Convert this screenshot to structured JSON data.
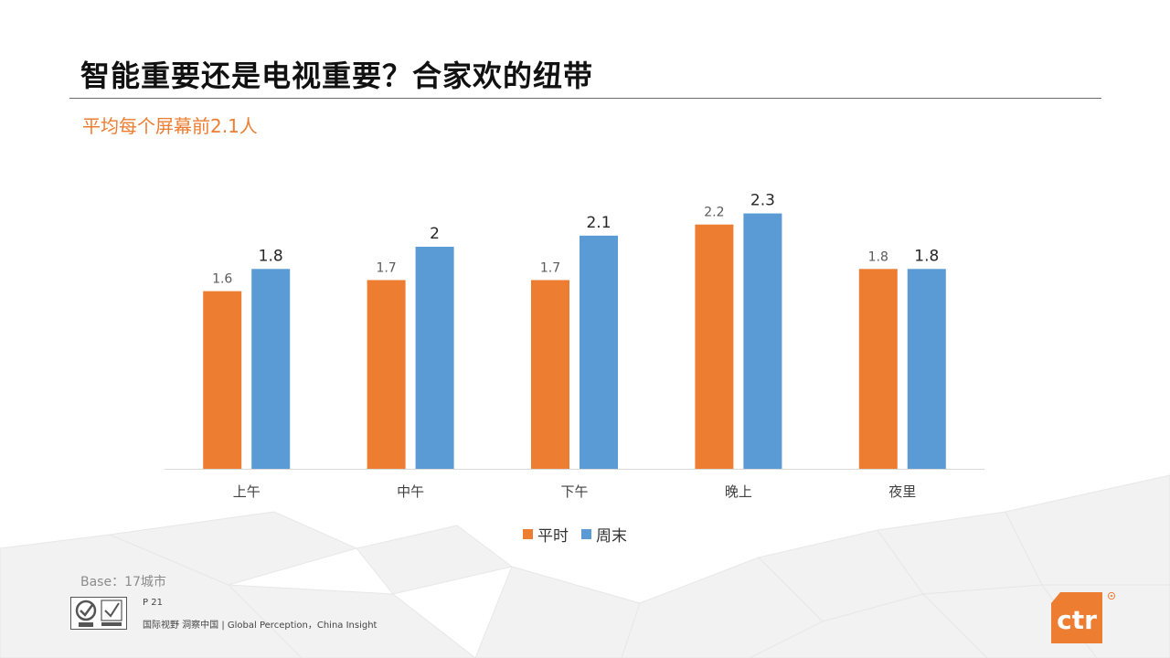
{
  "slide": {
    "title": "智能重要还是电视重要？合家欢的纽带",
    "subtitle": "平均每个屏幕前2.1人",
    "base_note": "Base：17城市",
    "page_number": "P 21",
    "footer_slogan": "国际视野 洞察中国 | Global Perception，China Insight",
    "brand_logo_text": "ctr",
    "brand_color": "#ED7D31"
  },
  "chart_data": {
    "type": "bar",
    "categories": [
      "上午",
      "中午",
      "下午",
      "晚上",
      "夜里"
    ],
    "series": [
      {
        "name": "平时",
        "values": [
          1.6,
          1.7,
          1.7,
          2.2,
          1.8
        ],
        "color": "#ED7D31"
      },
      {
        "name": "周末",
        "values": [
          1.8,
          2,
          2.1,
          2.3,
          1.8
        ],
        "color": "#5B9BD5"
      }
    ],
    "ylim": [
      0,
      2.6
    ],
    "grid": false,
    "legend_position": "bottom"
  }
}
